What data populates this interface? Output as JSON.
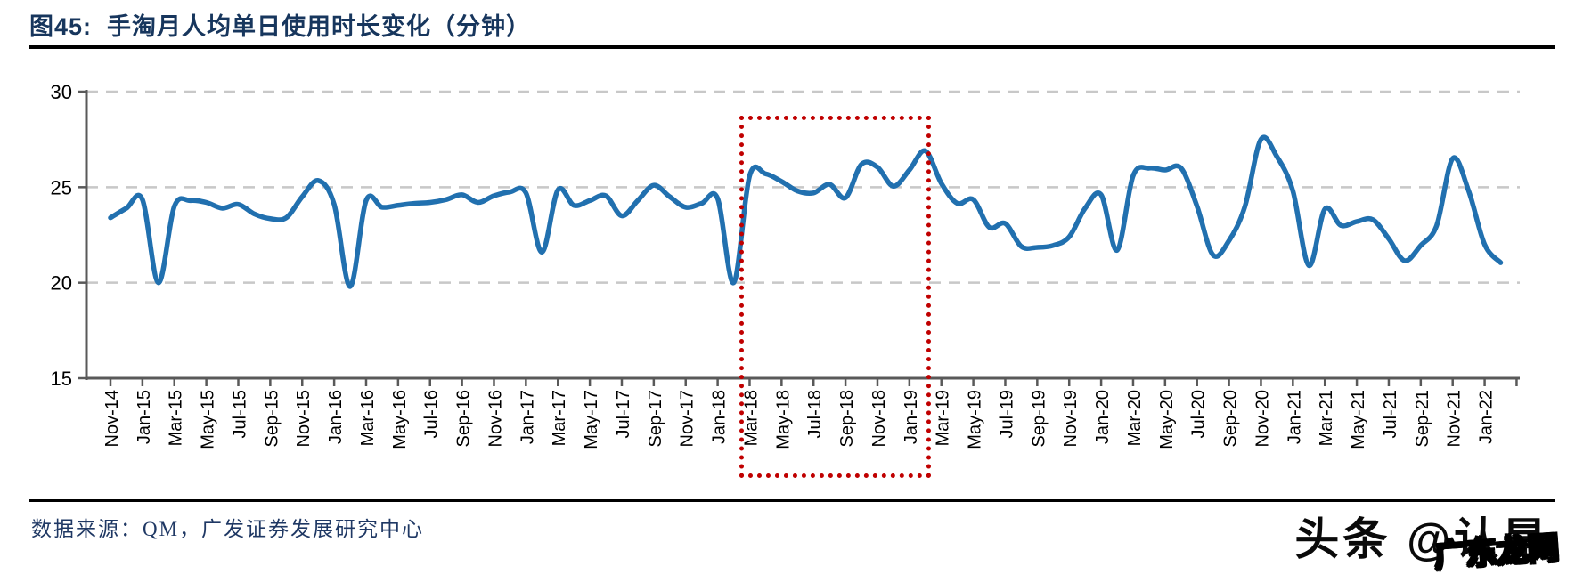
{
  "header": {
    "title": "图45:  手淘月人均单日使用时长变化（分钟）"
  },
  "footer": {
    "source": "数据来源：QM，广发证券发展研究中心"
  },
  "watermark": {
    "primary": "头条 @认是",
    "secondary": "广东龙网"
  },
  "chart_data": {
    "type": "line",
    "title": "手淘月人均单日使用时长变化（分钟）",
    "ylabel": "",
    "xlabel": "",
    "ylim": [
      15,
      30
    ],
    "yticks": [
      15,
      20,
      25,
      30
    ],
    "grid": "horizontal dashed",
    "legend": "none",
    "line_color": "#2170AF",
    "axis_color": "#595959",
    "gridline_color": "#C8C8C8",
    "annotation_box": {
      "start_month": "Feb-18",
      "end_month": "Feb-19",
      "color": "#C00000",
      "style": "dotted"
    },
    "x_tick_labels": [
      "Nov-14",
      "Jan-15",
      "Mar-15",
      "May-15",
      "Jul-15",
      "Sep-15",
      "Nov-15",
      "Jan-16",
      "Mar-16",
      "May-16",
      "Jul-16",
      "Sep-16",
      "Nov-16",
      "Jan-17",
      "Mar-17",
      "May-17",
      "Jul-17",
      "Sep-17",
      "Nov-17",
      "Jan-18",
      "Mar-18",
      "May-18",
      "Jul-18",
      "Sep-18",
      "Nov-18",
      "Jan-19",
      "Mar-19",
      "May-19",
      "Jul-19",
      "Sep-19",
      "Nov-19",
      "Jan-20",
      "Mar-20",
      "May-20",
      "Jul-20",
      "Sep-20",
      "Nov-20",
      "Jan-21",
      "Mar-21",
      "May-21",
      "Jul-21",
      "Sep-21",
      "Nov-21",
      "Jan-22"
    ],
    "months": [
      "Nov-14",
      "Dec-14",
      "Jan-15",
      "Feb-15",
      "Mar-15",
      "Apr-15",
      "May-15",
      "Jun-15",
      "Jul-15",
      "Aug-15",
      "Sep-15",
      "Oct-15",
      "Nov-15",
      "Dec-15",
      "Jan-16",
      "Feb-16",
      "Mar-16",
      "Apr-16",
      "May-16",
      "Jun-16",
      "Jul-16",
      "Aug-16",
      "Sep-16",
      "Oct-16",
      "Nov-16",
      "Dec-16",
      "Jan-17",
      "Feb-17",
      "Mar-17",
      "Apr-17",
      "May-17",
      "Jun-17",
      "Jul-17",
      "Aug-17",
      "Sep-17",
      "Oct-17",
      "Nov-17",
      "Dec-17",
      "Jan-18",
      "Feb-18",
      "Mar-18",
      "Apr-18",
      "May-18",
      "Jun-18",
      "Jul-18",
      "Aug-18",
      "Sep-18",
      "Oct-18",
      "Nov-18",
      "Dec-18",
      "Jan-19",
      "Feb-19",
      "Mar-19",
      "Apr-19",
      "May-19",
      "Jun-19",
      "Jul-19",
      "Aug-19",
      "Sep-19",
      "Oct-19",
      "Nov-19",
      "Dec-19",
      "Jan-20",
      "Feb-20",
      "Mar-20",
      "Apr-20",
      "May-20",
      "Jun-20",
      "Jul-20",
      "Aug-20",
      "Sep-20",
      "Oct-20",
      "Nov-20",
      "Dec-20",
      "Jan-21",
      "Feb-21",
      "Mar-21",
      "Apr-21",
      "May-21",
      "Jun-21",
      "Jul-21",
      "Aug-21",
      "Sep-21",
      "Oct-21",
      "Nov-21",
      "Dec-21",
      "Jan-22",
      "Feb-22"
    ],
    "series": [
      {
        "name": "手淘月人均单日使用时长（分钟）",
        "values": [
          23.4,
          23.9,
          24.35,
          20.0,
          24.0,
          24.3,
          24.2,
          23.9,
          24.1,
          23.6,
          23.35,
          23.4,
          24.5,
          25.35,
          24.1,
          19.8,
          24.3,
          23.95,
          24.05,
          24.15,
          24.2,
          24.35,
          24.6,
          24.2,
          24.55,
          24.75,
          24.7,
          21.6,
          24.85,
          24.05,
          24.3,
          24.55,
          23.5,
          24.3,
          25.1,
          24.5,
          23.95,
          24.15,
          24.4,
          20.0,
          25.6,
          25.7,
          25.3,
          24.8,
          24.7,
          25.15,
          24.45,
          26.2,
          26.05,
          25.05,
          25.9,
          26.9,
          25.2,
          24.15,
          24.35,
          22.9,
          23.1,
          21.9,
          21.85,
          21.95,
          22.4,
          23.9,
          24.6,
          21.7,
          25.6,
          26.0,
          25.9,
          26.0,
          24.0,
          21.45,
          22.2,
          24.0,
          27.5,
          26.6,
          24.8,
          20.9,
          23.85,
          23.0,
          23.2,
          23.3,
          22.3,
          21.15,
          21.95,
          23.0,
          26.5,
          24.8,
          22.0,
          21.05
        ]
      }
    ]
  }
}
